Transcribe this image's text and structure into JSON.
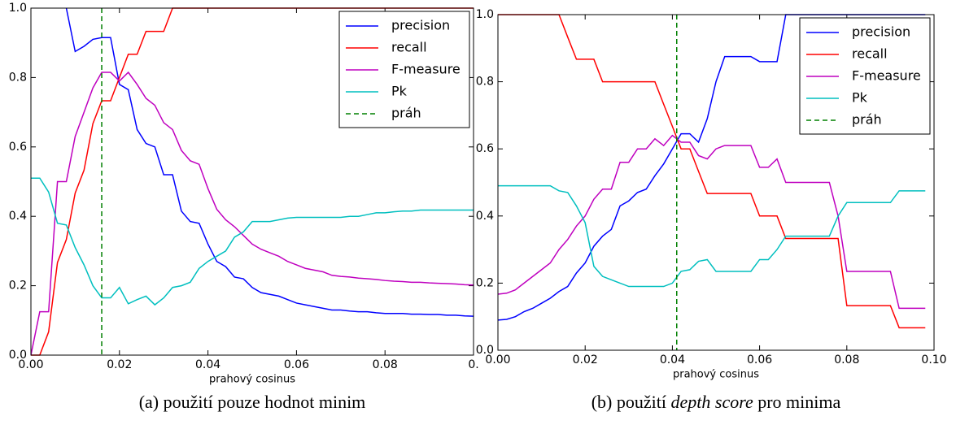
{
  "chart_data": [
    {
      "type": "line",
      "xlabel": "prahový cosinus",
      "caption": [
        "(a) použití pouze hodnot minim"
      ],
      "legend": "upper right",
      "xlim": [
        0,
        0.1
      ],
      "ylim": [
        0,
        1
      ],
      "xticks": [
        {
          "value": 0,
          "label": "0.00"
        },
        0.02,
        0.04,
        0.06,
        0.08,
        {
          "value": 0.1,
          "label": "0."
        }
      ],
      "yticks": [
        {
          "value": 0,
          "label": "0.0"
        },
        0.2,
        0.4,
        0.6,
        0.8,
        {
          "value": 1,
          "label": "1.0"
        }
      ],
      "x": [
        0,
        0.002,
        0.004,
        0.006,
        0.008,
        0.01,
        0.012,
        0.014,
        0.016,
        0.018,
        0.02,
        0.022,
        0.024,
        0.026,
        0.028,
        0.03,
        0.032,
        0.034,
        0.036,
        0.038,
        0.04,
        0.042,
        0.044,
        0.046,
        0.048,
        0.05,
        0.052,
        0.054,
        0.056,
        0.058,
        0.06,
        0.062,
        0.064,
        0.066,
        0.068,
        0.07,
        0.072,
        0.074,
        0.076,
        0.078,
        0.08,
        0.082,
        0.084,
        0.086,
        0.088,
        0.09,
        0.092,
        0.094,
        0.096,
        0.098,
        0.1
      ],
      "series": [
        {
          "name": "precision",
          "color": "#0000ff",
          "values": [
            null,
            null,
            null,
            null,
            1.0,
            0.875,
            0.89,
            0.91,
            0.915,
            0.915,
            0.78,
            0.765,
            0.65,
            0.61,
            0.6,
            0.52,
            0.52,
            0.415,
            0.385,
            0.38,
            0.32,
            0.27,
            0.255,
            0.225,
            0.22,
            0.195,
            0.18,
            0.175,
            0.17,
            0.16,
            0.15,
            0.145,
            0.14,
            0.135,
            0.13,
            0.13,
            0.127,
            0.125,
            0.125,
            0.122,
            0.12,
            0.12,
            0.12,
            0.118,
            0.118,
            0.117,
            0.117,
            0.115,
            0.115,
            0.113,
            0.112
          ]
        },
        {
          "name": "recall",
          "color": "#ff0000",
          "values": [
            0,
            0,
            0.067,
            0.267,
            0.333,
            0.467,
            0.533,
            0.667,
            0.733,
            0.733,
            0.8,
            0.867,
            0.867,
            0.933,
            0.933,
            0.933,
            1,
            1,
            1,
            1,
            1,
            1,
            1,
            1,
            1,
            1,
            1,
            1,
            1,
            1,
            1,
            1,
            1,
            1,
            1,
            1,
            1,
            1,
            1,
            1,
            1,
            1,
            1,
            1,
            1,
            1,
            1,
            1,
            1,
            1,
            1
          ]
        },
        {
          "name": "F-measure",
          "color": "#bf00bf",
          "values": [
            0,
            0.125,
            0.125,
            0.5,
            0.5,
            0.63,
            0.7,
            0.77,
            0.815,
            0.815,
            0.79,
            0.815,
            0.78,
            0.74,
            0.72,
            0.67,
            0.65,
            0.59,
            0.56,
            0.55,
            0.48,
            0.42,
            0.39,
            0.37,
            0.345,
            0.32,
            0.305,
            0.295,
            0.285,
            0.27,
            0.26,
            0.25,
            0.245,
            0.24,
            0.23,
            0.227,
            0.225,
            0.222,
            0.22,
            0.218,
            0.215,
            0.213,
            0.212,
            0.21,
            0.21,
            0.208,
            0.207,
            0.206,
            0.205,
            0.203,
            0.202
          ]
        },
        {
          "name": "Pk",
          "color": "#00bfbf",
          "values": [
            0.51,
            0.51,
            0.47,
            0.38,
            0.375,
            0.31,
            0.26,
            0.2,
            0.165,
            0.165,
            0.195,
            0.148,
            0.16,
            0.17,
            0.145,
            0.165,
            0.195,
            0.2,
            0.21,
            0.25,
            0.27,
            0.285,
            0.3,
            0.34,
            0.355,
            0.385,
            0.385,
            0.385,
            0.39,
            0.395,
            0.397,
            0.397,
            0.397,
            0.397,
            0.397,
            0.397,
            0.4,
            0.4,
            0.405,
            0.41,
            0.41,
            0.413,
            0.415,
            0.415,
            0.418,
            0.418,
            0.418,
            0.418,
            0.418,
            0.418,
            0.418
          ]
        }
      ],
      "threshold": {
        "name": "práh",
        "x": 0.016,
        "color": "#008000"
      }
    },
    {
      "type": "line",
      "xlabel": "prahový cosinus",
      "caption": [
        "(b) použití ",
        "depth score",
        " pro minima"
      ],
      "legend": "upper right",
      "xlim": [
        0,
        0.1
      ],
      "ylim": [
        0,
        1
      ],
      "xticks": [
        {
          "value": 0,
          "label": "0.00"
        },
        0.02,
        0.04,
        0.06,
        0.08,
        {
          "value": 0.1,
          "label": "0.10"
        }
      ],
      "yticks": [
        {
          "value": 0,
          "label": "0.0"
        },
        0.2,
        0.4,
        0.6,
        0.8,
        {
          "value": 1,
          "label": "1.0"
        }
      ],
      "x": [
        0,
        0.002,
        0.004,
        0.006,
        0.008,
        0.01,
        0.012,
        0.014,
        0.016,
        0.018,
        0.02,
        0.022,
        0.024,
        0.026,
        0.028,
        0.03,
        0.032,
        0.034,
        0.036,
        0.038,
        0.04,
        0.042,
        0.044,
        0.046,
        0.048,
        0.05,
        0.052,
        0.054,
        0.056,
        0.058,
        0.06,
        0.062,
        0.064,
        0.066,
        0.068,
        0.07,
        0.072,
        0.074,
        0.076,
        0.078,
        0.08,
        0.082,
        0.084,
        0.086,
        0.088,
        0.09,
        0.092,
        0.094,
        0.096,
        0.098
      ],
      "series": [
        {
          "name": "precision",
          "color": "#0000ff",
          "values": [
            0.09,
            0.092,
            0.1,
            0.115,
            0.125,
            0.14,
            0.155,
            0.175,
            0.19,
            0.23,
            0.26,
            0.31,
            0.34,
            0.36,
            0.43,
            0.445,
            0.47,
            0.48,
            0.52,
            0.555,
            0.6,
            0.645,
            0.645,
            0.62,
            0.69,
            0.8,
            0.875,
            0.875,
            0.875,
            0.875,
            0.86,
            0.86,
            0.86,
            1,
            1,
            1,
            1,
            1,
            1,
            1,
            1,
            1,
            1,
            1,
            1,
            1,
            1,
            1,
            1,
            1
          ]
        },
        {
          "name": "recall",
          "color": "#ff0000",
          "values": [
            1,
            1,
            1,
            1,
            1,
            1,
            1,
            1,
            0.933,
            0.867,
            0.867,
            0.867,
            0.8,
            0.8,
            0.8,
            0.8,
            0.8,
            0.8,
            0.8,
            0.733,
            0.667,
            0.6,
            0.6,
            0.533,
            0.467,
            0.467,
            0.467,
            0.467,
            0.467,
            0.467,
            0.4,
            0.4,
            0.4,
            0.333,
            0.333,
            0.333,
            0.333,
            0.333,
            0.333,
            0.333,
            0.133,
            0.133,
            0.133,
            0.133,
            0.133,
            0.133,
            0.067,
            0.067,
            0.067,
            0.067
          ]
        },
        {
          "name": "F-measure",
          "color": "#bf00bf",
          "values": [
            0.167,
            0.17,
            0.18,
            0.2,
            0.22,
            0.24,
            0.26,
            0.3,
            0.33,
            0.37,
            0.4,
            0.45,
            0.48,
            0.48,
            0.56,
            0.56,
            0.6,
            0.6,
            0.63,
            0.61,
            0.64,
            0.62,
            0.62,
            0.58,
            0.57,
            0.6,
            0.61,
            0.61,
            0.61,
            0.61,
            0.545,
            0.545,
            0.57,
            0.5,
            0.5,
            0.5,
            0.5,
            0.5,
            0.5,
            0.4,
            0.235,
            0.235,
            0.235,
            0.235,
            0.235,
            0.235,
            0.125,
            0.125,
            0.125,
            0.125
          ]
        },
        {
          "name": "Pk",
          "color": "#00bfbf",
          "values": [
            0.49,
            0.49,
            0.49,
            0.49,
            0.49,
            0.49,
            0.49,
            0.475,
            0.47,
            0.43,
            0.38,
            0.25,
            0.22,
            0.21,
            0.2,
            0.19,
            0.19,
            0.19,
            0.19,
            0.19,
            0.2,
            0.235,
            0.24,
            0.265,
            0.27,
            0.235,
            0.235,
            0.235,
            0.235,
            0.235,
            0.27,
            0.27,
            0.3,
            0.34,
            0.34,
            0.34,
            0.34,
            0.34,
            0.34,
            0.4,
            0.44,
            0.44,
            0.44,
            0.44,
            0.44,
            0.44,
            0.475,
            0.475,
            0.475,
            0.475
          ]
        }
      ],
      "threshold": {
        "name": "práh",
        "x": 0.041,
        "color": "#008000"
      }
    }
  ]
}
